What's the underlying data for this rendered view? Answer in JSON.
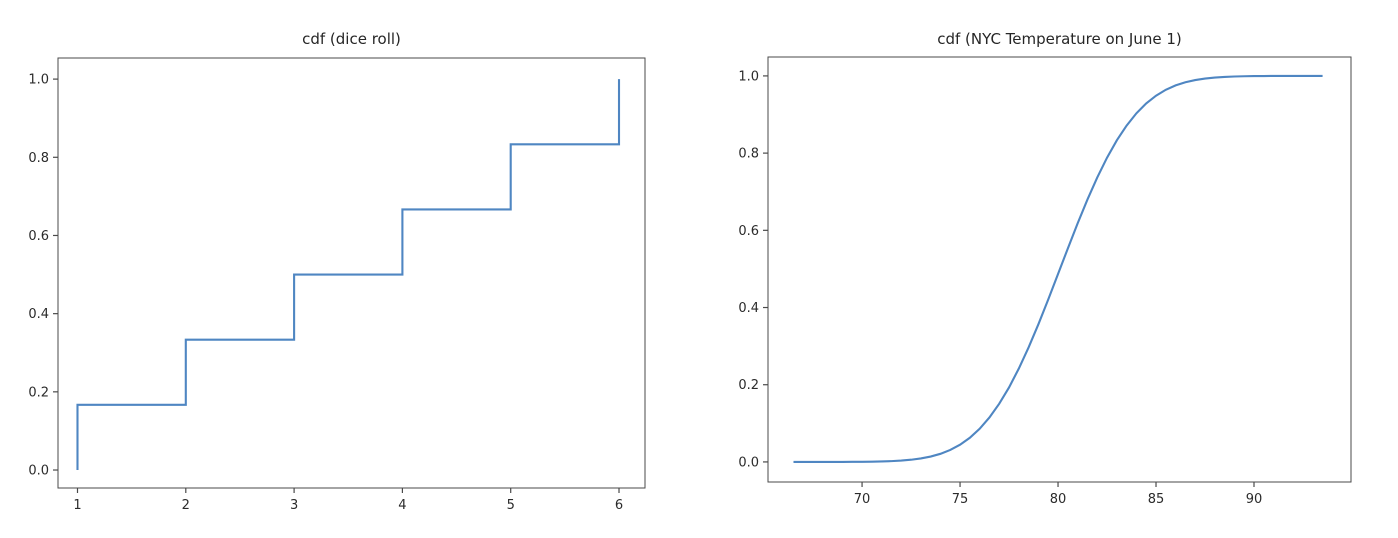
{
  "figure": {
    "background_color": "#ffffff",
    "text_color": "#262626",
    "spine_color": "#4a4a4a",
    "accent_line_color": "#4f86c2"
  },
  "chart_data": [
    {
      "type": "line",
      "subtype": "step-cdf",
      "title": "cdf (dice roll)",
      "xlabel": "",
      "ylabel": "",
      "legend": null,
      "grid": false,
      "line_color": "#4f86c2",
      "xlim": [
        0.82,
        6.24
      ],
      "ylim": [
        -0.046,
        1.054
      ],
      "xticks": [
        1,
        2,
        3,
        4,
        5,
        6
      ],
      "xtick_labels": [
        "1",
        "2",
        "3",
        "4",
        "5",
        "6"
      ],
      "yticks": [
        0.0,
        0.2,
        0.4,
        0.6,
        0.8,
        1.0
      ],
      "ytick_labels": [
        "0.0",
        "0.2",
        "0.4",
        "0.6",
        "0.8",
        "1.0"
      ],
      "x": [
        1,
        1,
        2,
        2,
        3,
        3,
        4,
        4,
        5,
        5,
        6,
        6
      ],
      "y": [
        0.0,
        0.1667,
        0.1667,
        0.3333,
        0.3333,
        0.5,
        0.5,
        0.6667,
        0.6667,
        0.8333,
        0.8333,
        1.0
      ],
      "step_values": {
        "outcomes": [
          1,
          2,
          3,
          4,
          5,
          6
        ],
        "cdf": [
          0.1667,
          0.3333,
          0.5,
          0.6667,
          0.8333,
          1.0
        ]
      }
    },
    {
      "type": "line",
      "subtype": "smooth-cdf",
      "title": "cdf (NYC Temperature on June 1)",
      "xlabel": "",
      "ylabel": "",
      "legend": null,
      "grid": false,
      "line_color": "#4f86c2",
      "xlim": [
        65.2,
        94.95
      ],
      "ylim": [
        -0.052,
        1.049
      ],
      "xticks": [
        70,
        75,
        80,
        85,
        90
      ],
      "xtick_labels": [
        "70",
        "75",
        "80",
        "85",
        "90"
      ],
      "yticks": [
        0.0,
        0.2,
        0.4,
        0.6,
        0.8,
        1.0
      ],
      "ytick_labels": [
        "0.0",
        "0.2",
        "0.4",
        "0.6",
        "0.8",
        "1.0"
      ],
      "x": [
        66.5,
        67,
        67.5,
        68,
        68.5,
        69,
        69.5,
        70,
        70.5,
        71,
        71.5,
        72,
        72.5,
        73,
        73.5,
        74,
        74.5,
        75,
        75.5,
        76,
        76.5,
        77,
        77.5,
        78,
        78.5,
        79,
        79.5,
        80,
        80.5,
        81,
        81.5,
        82,
        82.5,
        83,
        83.5,
        84,
        84.5,
        85,
        85.5,
        86,
        86.5,
        87,
        87.5,
        88,
        88.5,
        89,
        89.5,
        90,
        90.5,
        91,
        91.5,
        92,
        92.5,
        93,
        93.5
      ],
      "y": [
        0.0,
        0.0,
        0.0,
        0.0,
        0.0001,
        0.0001,
        0.0002,
        0.0004,
        0.0007,
        0.0012,
        0.0021,
        0.0035,
        0.0057,
        0.009,
        0.0139,
        0.021,
        0.031,
        0.0446,
        0.0626,
        0.0859,
        0.1151,
        0.1508,
        0.193,
        0.242,
        0.2969,
        0.3569,
        0.4207,
        0.4867,
        0.553,
        0.6179,
        0.6797,
        0.7367,
        0.7881,
        0.8332,
        0.8714,
        0.9032,
        0.9288,
        0.9488,
        0.9641,
        0.9754,
        0.9836,
        0.9893,
        0.9932,
        0.9958,
        0.9974,
        0.9985,
        0.9991,
        0.9995,
        0.9997,
        0.9999,
        0.9999,
        1.0,
        1.0,
        1.0,
        1.0
      ]
    }
  ]
}
